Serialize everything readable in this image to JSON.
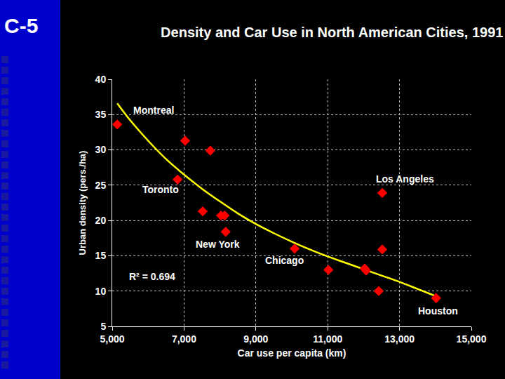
{
  "slide_label": "C-5",
  "chart_data": {
    "type": "scatter",
    "title": "Density and Car Use in North American Cities, 1991",
    "x_label": "Car use per capita (km)",
    "y_label": "Urban density (pers./ha)",
    "series": [
      {
        "type": "scatter",
        "marker": "diamond",
        "color": "#ff0000",
        "x": [
          5140,
          7030,
          7730,
          6820,
          7520,
          8030,
          8130,
          8160,
          10080,
          11020,
          12030,
          12070,
          12520,
          12520,
          12420,
          14020
        ],
        "values": [
          33.6,
          31.3,
          29.9,
          25.8,
          21.3,
          20.7,
          20.7,
          18.4,
          16.0,
          13.0,
          13.2,
          12.9,
          23.9,
          15.9,
          10.0,
          9.0
        ]
      },
      {
        "type": "line",
        "line_style": "solid",
        "color": "#ffff00",
        "x": [
          5140,
          5500,
          6000,
          6500,
          7000,
          7500,
          8000,
          8500,
          9000,
          9500,
          10000,
          10500,
          11000,
          11500,
          12000,
          12500,
          13000,
          13500,
          14000
        ],
        "values": [
          36.6,
          34.2,
          31.3,
          28.7,
          26.5,
          24.5,
          22.7,
          21.0,
          19.5,
          18.2,
          17.0,
          15.9,
          14.9,
          14.0,
          13.1,
          12.2,
          11.3,
          10.3,
          9.3
        ]
      }
    ],
    "xlim": [
      5000,
      15000
    ],
    "xticks": [
      {
        "value": 5000,
        "label": "5,000"
      },
      {
        "value": 7000,
        "label": "7,000"
      },
      {
        "value": 9000,
        "label": "9,000"
      },
      {
        "value": 11000,
        "label": "11,000"
      },
      {
        "value": 13000,
        "label": "13,000"
      },
      {
        "value": 15000,
        "label": "15,000"
      }
    ],
    "ylim": [
      5,
      40
    ],
    "yticks": [
      5,
      10,
      15,
      20,
      25,
      30,
      35,
      40
    ],
    "grid": true,
    "annotations": [
      {
        "text": "Montreal",
        "x": 6150,
        "y": 35.6
      },
      {
        "text": "Toronto",
        "x": 6350,
        "y": 24.4
      },
      {
        "text": "New York",
        "x": 7930,
        "y": 16.6
      },
      {
        "text": "Chicago",
        "x": 9790,
        "y": 14.3
      },
      {
        "text": "Los Angeles",
        "x": 13150,
        "y": 25.9
      },
      {
        "text": "Houston",
        "x": 14080,
        "y": 7.2
      },
      {
        "text": "R² = 0.694",
        "x": 6110,
        "y": 12.1
      }
    ]
  }
}
